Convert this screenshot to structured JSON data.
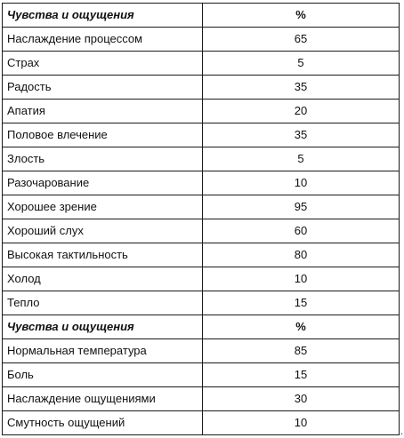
{
  "table": {
    "sections": [
      {
        "header": {
          "name": "Чувства и ощущения",
          "value": "%"
        },
        "rows": [
          {
            "name": "Наслаждение процессом",
            "value": "65"
          },
          {
            "name": "Страх",
            "value": "5"
          },
          {
            "name": "Радость",
            "value": "35"
          },
          {
            "name": "Апатия",
            "value": "20"
          },
          {
            "name": "Половое влечение",
            "value": "35"
          },
          {
            "name": "Злость",
            "value": "5"
          },
          {
            "name": "Разочарование",
            "value": "10"
          },
          {
            "name": "Хорошее зрение",
            "value": "95"
          },
          {
            "name": "Хороший слух",
            "value": "60"
          },
          {
            "name": "Высокая тактильность",
            "value": "80"
          },
          {
            "name": "Холод",
            "value": "10"
          },
          {
            "name": "Тепло",
            "value": "15"
          }
        ]
      },
      {
        "header": {
          "name": "Чувства и ощущения",
          "value": "%"
        },
        "rows": [
          {
            "name": "Нормальная температура",
            "value": "85"
          },
          {
            "name": "Боль",
            "value": "15"
          },
          {
            "name": "Наслаждение ощущениями",
            "value": "30"
          },
          {
            "name": "Смутность ощущений",
            "value": "10"
          }
        ]
      }
    ],
    "trailing_mark": "."
  }
}
